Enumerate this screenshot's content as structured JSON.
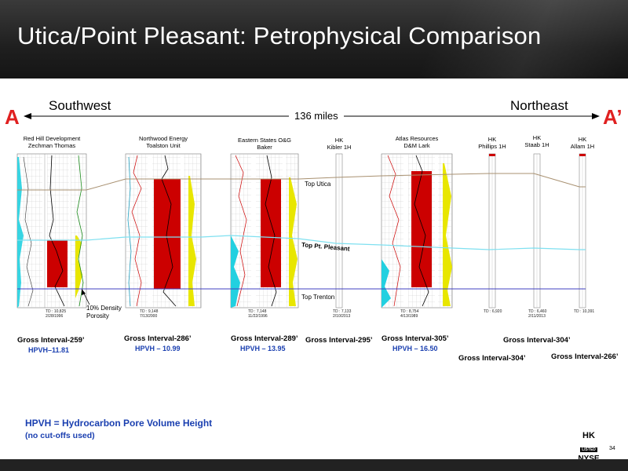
{
  "title": "Utica/Point Pleasant: Petrophysical Comparison",
  "cross_section": {
    "left_label": "A",
    "right_label": "A’",
    "southwest": "Southwest",
    "northeast": "Northeast",
    "distance": "136 miles"
  },
  "wells": [
    {
      "name_line1": "Red Hill Development",
      "name_line2": "Zechman Thomas",
      "td_line1": "TD : 10,825",
      "td_line2": "2/28/1996",
      "gross": "Gross Interval-259’",
      "hpvh": "HPVH–11.81"
    },
    {
      "name_line1": "Northwood Energy",
      "name_line2": "Toalston Unit",
      "td_line1": "TD : 9,148",
      "td_line2": "7/13/2000",
      "gross": "Gross Interval-286’",
      "hpvh": "HPVH – 10.99"
    },
    {
      "name_line1": "Eastern States O&G",
      "name_line2": "Baker",
      "td_line1": "TD : 7,148",
      "td_line2": "11/22/1996",
      "gross": "Gross Interval-289’",
      "hpvh": "HPVH – 13.95"
    },
    {
      "name_line1": "HK",
      "name_line2": "Kibler 1H",
      "td_line1": "TD : 7,133",
      "td_line2": "2/10/2013",
      "gross": "Gross Interval-295’",
      "hpvh": ""
    },
    {
      "name_line1": "Atlas Resources",
      "name_line2": "D&M Lark",
      "td_line1": "TD : 8,754",
      "td_line2": "4/13/1989",
      "gross": "Gross Interval-305’",
      "hpvh": "HPVH – 16.50"
    },
    {
      "name_line1": "HK",
      "name_line2": "Phillips 1H",
      "td_line1": "TD : 6,920",
      "td_line2": "",
      "gross": "Gross Interval-304’",
      "hpvh": ""
    },
    {
      "name_line1": "HK",
      "name_line2": "Staab 1H",
      "td_line1": "TD : 6,460",
      "td_line2": "2/11/2013",
      "gross": "Gross Interval-304’",
      "hpvh": ""
    },
    {
      "name_line1": "HK",
      "name_line2": "Allam 1H",
      "td_line1": "TD : 10,391",
      "td_line2": "",
      "gross": "Gross Interval-266’",
      "hpvh": ""
    }
  ],
  "markers": {
    "top_utica": "Top Utica",
    "top_pt_pleasant": "Top Pt. Pleasant",
    "top_trenton": "Top Trenton"
  },
  "annotation": {
    "line1": "10% Density",
    "line2": "Porosity"
  },
  "legend": {
    "line1": "HPVH = Hydrocarbon Pore Volume Height",
    "line2": "(no cut-offs used)"
  },
  "logo": {
    "hk": "HK",
    "listed": "LISTED",
    "nyse": "NYSE"
  },
  "page_number": "34",
  "colors": {
    "red_zone": "#cc0000",
    "yellow_fill": "#e8e600",
    "cyan_fill": "#22d0e0",
    "utica_line": "#a89070",
    "pt_pleasant_line": "#7fe0f0",
    "trenton_line": "#4040c0",
    "accent_red": "#e02020",
    "hpvh_blue": "#1a3fb0"
  },
  "icons": {
    "left_arrow": "arrow-left-icon",
    "right_arrow": "arrow-right-icon"
  }
}
